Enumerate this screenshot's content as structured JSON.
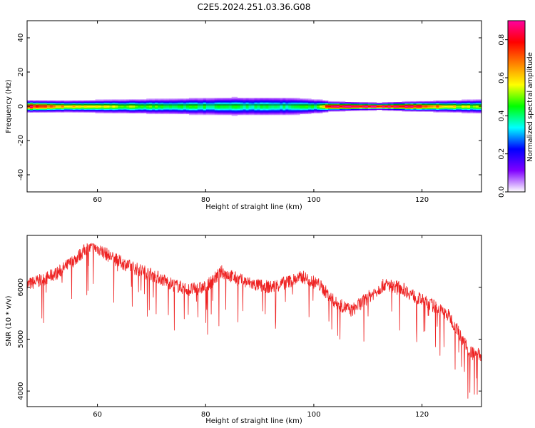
{
  "figure": {
    "title": "C2E5.2024.251.03.36.G08"
  },
  "chart_data": [
    {
      "type": "heatmap",
      "xlabel": "Height of straight line (km)",
      "ylabel": "Frequency (Hz)",
      "xlim": [
        47,
        131
      ],
      "ylim": [
        -50,
        50
      ],
      "x_ticks": [
        60,
        80,
        100,
        120
      ],
      "y_ticks": [
        -40,
        -20,
        0,
        20,
        40
      ],
      "band": [
        {
          "x": 47,
          "center_hz": 0,
          "peak_amp": 0.85,
          "half_width_hz": 2.5
        },
        {
          "x": 55,
          "center_hz": 0,
          "peak_amp": 0.6,
          "half_width_hz": 2.5
        },
        {
          "x": 65,
          "center_hz": 0,
          "peak_amp": 0.5,
          "half_width_hz": 3
        },
        {
          "x": 75,
          "center_hz": 0,
          "peak_amp": 0.45,
          "half_width_hz": 3.5
        },
        {
          "x": 85,
          "center_hz": 0,
          "peak_amp": 0.42,
          "half_width_hz": 4
        },
        {
          "x": 95,
          "center_hz": 0,
          "peak_amp": 0.4,
          "half_width_hz": 4
        },
        {
          "x": 101,
          "center_hz": 0,
          "peak_amp": 0.45,
          "half_width_hz": 3
        },
        {
          "x": 103,
          "center_hz": 0,
          "peak_amp": 0.85,
          "half_width_hz": 2
        },
        {
          "x": 112,
          "center_hz": 0,
          "peak_amp": 0.88,
          "half_width_hz": 1.5
        },
        {
          "x": 118,
          "center_hz": 0,
          "peak_amp": 0.85,
          "half_width_hz": 2
        },
        {
          "x": 125,
          "center_hz": 0,
          "peak_amp": 0.6,
          "half_width_hz": 2.5
        },
        {
          "x": 131,
          "center_hz": 0,
          "peak_amp": 0.5,
          "half_width_hz": 3
        }
      ],
      "colorbar": {
        "label": "Normalized spectral amplitude",
        "range": [
          0,
          0.9
        ],
        "ticks": [
          0.0,
          0.2,
          0.4,
          0.6,
          0.8
        ],
        "tick_labels": [
          "0.0",
          "0.2",
          "0.4",
          "0.6",
          "0.8"
        ],
        "colormap": [
          "#ffffff",
          "#8000ff",
          "#0000ff",
          "#00ffff",
          "#00ff00",
          "#ffff00",
          "#ff8000",
          "#ff0000",
          "#ff00a0"
        ]
      }
    },
    {
      "type": "line",
      "xlabel": "Height of straight line (km)",
      "ylabel": "SNR (10 * v/v)",
      "xlim": [
        47,
        131
      ],
      "ylim": [
        3700,
        7000
      ],
      "x_ticks": [
        60,
        80,
        100,
        120
      ],
      "y_ticks": [
        4000,
        5000,
        6000
      ],
      "series": [
        {
          "color": "#ee2222",
          "envelope": [
            {
              "x": 47,
              "y": 6050
            },
            {
              "x": 50,
              "y": 6150
            },
            {
              "x": 53,
              "y": 6300
            },
            {
              "x": 56,
              "y": 6550
            },
            {
              "x": 58,
              "y": 6750
            },
            {
              "x": 60,
              "y": 6750
            },
            {
              "x": 63,
              "y": 6550
            },
            {
              "x": 66,
              "y": 6400
            },
            {
              "x": 70,
              "y": 6250
            },
            {
              "x": 74,
              "y": 6050
            },
            {
              "x": 77,
              "y": 5950
            },
            {
              "x": 80,
              "y": 6000
            },
            {
              "x": 83,
              "y": 6300
            },
            {
              "x": 86,
              "y": 6150
            },
            {
              "x": 89,
              "y": 6050
            },
            {
              "x": 92,
              "y": 6000
            },
            {
              "x": 95,
              "y": 6100
            },
            {
              "x": 98,
              "y": 6200
            },
            {
              "x": 101,
              "y": 6050
            },
            {
              "x": 104,
              "y": 5700
            },
            {
              "x": 107,
              "y": 5550
            },
            {
              "x": 110,
              "y": 5800
            },
            {
              "x": 113,
              "y": 6050
            },
            {
              "x": 116,
              "y": 6000
            },
            {
              "x": 119,
              "y": 5800
            },
            {
              "x": 122,
              "y": 5650
            },
            {
              "x": 125,
              "y": 5450
            },
            {
              "x": 127,
              "y": 5100
            },
            {
              "x": 129,
              "y": 4750
            },
            {
              "x": 131,
              "y": 4700
            }
          ],
          "noise_amplitude": 130
        }
      ]
    }
  ]
}
